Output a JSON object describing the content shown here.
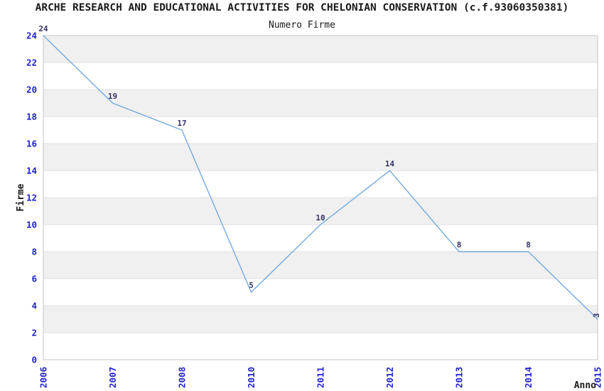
{
  "chart_data": {
    "type": "line",
    "title": "ARCHE RESEARCH AND EDUCATIONAL ACTIVITIES FOR CHELONIAN CONSERVATION (c.f.93060350381)",
    "subtitle": "Numero Firme",
    "xlabel": "Anno",
    "ylabel": "Firme",
    "categories": [
      "2006",
      "2007",
      "2008",
      "2010",
      "2011",
      "2012",
      "2013",
      "2014",
      "2015"
    ],
    "values": [
      24,
      19,
      17,
      5,
      10,
      14,
      8,
      8,
      3
    ],
    "ylim": [
      0,
      24
    ],
    "ytick_step": 2,
    "ytick_labels": [
      "0",
      "2",
      "4",
      "6",
      "8",
      "10",
      "12",
      "14",
      "16",
      "18",
      "20",
      "22",
      "24"
    ],
    "grid": "horizontal-bands-every-2-units",
    "legend_position": "none",
    "colors": {
      "line": "#74aae2",
      "tick_label": "#2222cc",
      "value_label": "#333366",
      "band": "#f0f0f0",
      "gridline": "#e0e0e0",
      "plot_border": "#c4c4c4",
      "text": "#1a1a1a",
      "background": "#ffffff"
    }
  }
}
